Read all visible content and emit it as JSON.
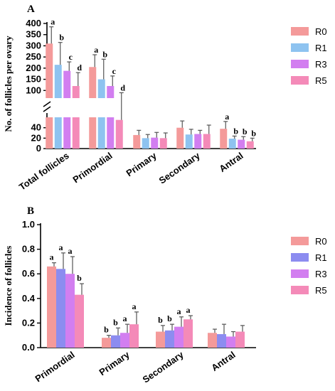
{
  "chart_data": [
    {
      "panel": "A",
      "type": "bar",
      "ylabel": "No. of follicles per ovary",
      "categories": [
        "Total follicles",
        "Primordial",
        "Primary",
        "Secondary",
        "Antral"
      ],
      "y_axis_break": true,
      "lower_ticks": [
        "0",
        "20",
        "40"
      ],
      "upper_ticks": [
        "100",
        "150",
        "200",
        "250",
        "300",
        "350",
        "400"
      ],
      "ylim_lower": [
        0,
        60
      ],
      "ylim_upper": [
        85,
        400
      ],
      "legend_position": "right",
      "colors": [
        "#f49a9a",
        "#8ec3f0",
        "#d27ef0",
        "#f48ab8"
      ],
      "series": [
        {
          "name": "R0",
          "values": [
            310,
            205,
            26,
            40,
            38
          ],
          "errors": [
            75,
            55,
            9,
            13,
            14
          ],
          "letters": [
            "a",
            "a",
            "",
            "",
            "a"
          ]
        },
        {
          "name": "R1",
          "values": [
            215,
            150,
            20,
            27,
            19
          ],
          "errors": [
            100,
            90,
            7,
            10,
            5
          ],
          "letters": [
            "b",
            "b",
            "",
            "",
            "b"
          ]
        },
        {
          "name": "R3",
          "values": [
            188,
            120,
            21,
            28,
            17
          ],
          "errors": [
            40,
            45,
            10,
            7,
            6
          ],
          "letters": [
            "c",
            "c",
            "",
            "",
            "b"
          ]
        },
        {
          "name": "R5",
          "values": [
            120,
            55,
            20,
            28,
            14
          ],
          "errors": [
            60,
            35,
            10,
            17,
            6
          ],
          "letters": [
            "d",
            "d",
            "",
            "",
            "b"
          ]
        }
      ]
    },
    {
      "panel": "B",
      "type": "bar",
      "ylabel": "Incidence of follicles",
      "categories": [
        "Primordial",
        "Primary",
        "Secondary",
        "Antral"
      ],
      "ticks": [
        "0.0",
        "0.2",
        "0.4",
        "0.6",
        "0.8",
        "1.0"
      ],
      "ylim": [
        0,
        1.0
      ],
      "legend_position": "right",
      "colors": [
        "#f49a9a",
        "#8c8cf0",
        "#d27ef0",
        "#f48ab8"
      ],
      "series": [
        {
          "name": "R0",
          "values": [
            0.66,
            0.08,
            0.13,
            0.12
          ],
          "errors": [
            0.03,
            0.02,
            0.05,
            0.03
          ],
          "letters": [
            "a",
            "b",
            "b",
            ""
          ]
        },
        {
          "name": "R1",
          "values": [
            0.64,
            0.1,
            0.14,
            0.11
          ],
          "errors": [
            0.13,
            0.06,
            0.05,
            0.08
          ],
          "letters": [
            "a",
            "b",
            "b",
            ""
          ]
        },
        {
          "name": "R3",
          "values": [
            0.6,
            0.12,
            0.17,
            0.09
          ],
          "errors": [
            0.14,
            0.07,
            0.08,
            0.04
          ],
          "letters": [
            "a",
            "a",
            "a",
            ""
          ]
        },
        {
          "name": "R5",
          "values": [
            0.43,
            0.19,
            0.23,
            0.13
          ],
          "errors": [
            0.09,
            0.1,
            0.03,
            0.05
          ],
          "letters": [
            "b",
            "a",
            "a",
            ""
          ]
        }
      ]
    }
  ]
}
